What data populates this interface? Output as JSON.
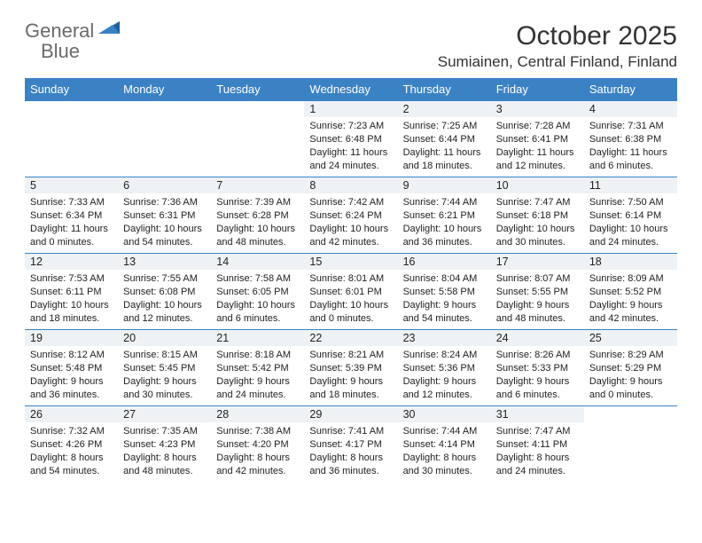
{
  "brand": {
    "part1": "General",
    "part2": "Blue"
  },
  "title": "October 2025",
  "location": "Sumiainen, Central Finland, Finland",
  "colors": {
    "header_bg": "#3b82c4",
    "header_text": "#ffffff",
    "daynum_bg": "#eef2f5",
    "row_divider": "#3b82c4",
    "body_text": "#222222",
    "logo_gray": "#6b6b6b",
    "logo_blue": "#3b82c4",
    "page_bg": "#ffffff"
  },
  "typography": {
    "title_fontsize": 30,
    "location_fontsize": 17,
    "header_fontsize": 13,
    "daynum_fontsize": 12.5,
    "body_fontsize": 11
  },
  "dayHeaders": [
    "Sunday",
    "Monday",
    "Tuesday",
    "Wednesday",
    "Thursday",
    "Friday",
    "Saturday"
  ],
  "weeks": [
    [
      null,
      null,
      null,
      {
        "n": "1",
        "sr": "7:23 AM",
        "ss": "6:48 PM",
        "dl": "11 hours and 24 minutes."
      },
      {
        "n": "2",
        "sr": "7:25 AM",
        "ss": "6:44 PM",
        "dl": "11 hours and 18 minutes."
      },
      {
        "n": "3",
        "sr": "7:28 AM",
        "ss": "6:41 PM",
        "dl": "11 hours and 12 minutes."
      },
      {
        "n": "4",
        "sr": "7:31 AM",
        "ss": "6:38 PM",
        "dl": "11 hours and 6 minutes."
      }
    ],
    [
      {
        "n": "5",
        "sr": "7:33 AM",
        "ss": "6:34 PM",
        "dl": "11 hours and 0 minutes."
      },
      {
        "n": "6",
        "sr": "7:36 AM",
        "ss": "6:31 PM",
        "dl": "10 hours and 54 minutes."
      },
      {
        "n": "7",
        "sr": "7:39 AM",
        "ss": "6:28 PM",
        "dl": "10 hours and 48 minutes."
      },
      {
        "n": "8",
        "sr": "7:42 AM",
        "ss": "6:24 PM",
        "dl": "10 hours and 42 minutes."
      },
      {
        "n": "9",
        "sr": "7:44 AM",
        "ss": "6:21 PM",
        "dl": "10 hours and 36 minutes."
      },
      {
        "n": "10",
        "sr": "7:47 AM",
        "ss": "6:18 PM",
        "dl": "10 hours and 30 minutes."
      },
      {
        "n": "11",
        "sr": "7:50 AM",
        "ss": "6:14 PM",
        "dl": "10 hours and 24 minutes."
      }
    ],
    [
      {
        "n": "12",
        "sr": "7:53 AM",
        "ss": "6:11 PM",
        "dl": "10 hours and 18 minutes."
      },
      {
        "n": "13",
        "sr": "7:55 AM",
        "ss": "6:08 PM",
        "dl": "10 hours and 12 minutes."
      },
      {
        "n": "14",
        "sr": "7:58 AM",
        "ss": "6:05 PM",
        "dl": "10 hours and 6 minutes."
      },
      {
        "n": "15",
        "sr": "8:01 AM",
        "ss": "6:01 PM",
        "dl": "10 hours and 0 minutes."
      },
      {
        "n": "16",
        "sr": "8:04 AM",
        "ss": "5:58 PM",
        "dl": "9 hours and 54 minutes."
      },
      {
        "n": "17",
        "sr": "8:07 AM",
        "ss": "5:55 PM",
        "dl": "9 hours and 48 minutes."
      },
      {
        "n": "18",
        "sr": "8:09 AM",
        "ss": "5:52 PM",
        "dl": "9 hours and 42 minutes."
      }
    ],
    [
      {
        "n": "19",
        "sr": "8:12 AM",
        "ss": "5:48 PM",
        "dl": "9 hours and 36 minutes."
      },
      {
        "n": "20",
        "sr": "8:15 AM",
        "ss": "5:45 PM",
        "dl": "9 hours and 30 minutes."
      },
      {
        "n": "21",
        "sr": "8:18 AM",
        "ss": "5:42 PM",
        "dl": "9 hours and 24 minutes."
      },
      {
        "n": "22",
        "sr": "8:21 AM",
        "ss": "5:39 PM",
        "dl": "9 hours and 18 minutes."
      },
      {
        "n": "23",
        "sr": "8:24 AM",
        "ss": "5:36 PM",
        "dl": "9 hours and 12 minutes."
      },
      {
        "n": "24",
        "sr": "8:26 AM",
        "ss": "5:33 PM",
        "dl": "9 hours and 6 minutes."
      },
      {
        "n": "25",
        "sr": "8:29 AM",
        "ss": "5:29 PM",
        "dl": "9 hours and 0 minutes."
      }
    ],
    [
      {
        "n": "26",
        "sr": "7:32 AM",
        "ss": "4:26 PM",
        "dl": "8 hours and 54 minutes."
      },
      {
        "n": "27",
        "sr": "7:35 AM",
        "ss": "4:23 PM",
        "dl": "8 hours and 48 minutes."
      },
      {
        "n": "28",
        "sr": "7:38 AM",
        "ss": "4:20 PM",
        "dl": "8 hours and 42 minutes."
      },
      {
        "n": "29",
        "sr": "7:41 AM",
        "ss": "4:17 PM",
        "dl": "8 hours and 36 minutes."
      },
      {
        "n": "30",
        "sr": "7:44 AM",
        "ss": "4:14 PM",
        "dl": "8 hours and 30 minutes."
      },
      {
        "n": "31",
        "sr": "7:47 AM",
        "ss": "4:11 PM",
        "dl": "8 hours and 24 minutes."
      },
      null
    ]
  ],
  "labels": {
    "sunrise": "Sunrise:",
    "sunset": "Sunset:",
    "daylight": "Daylight:"
  }
}
